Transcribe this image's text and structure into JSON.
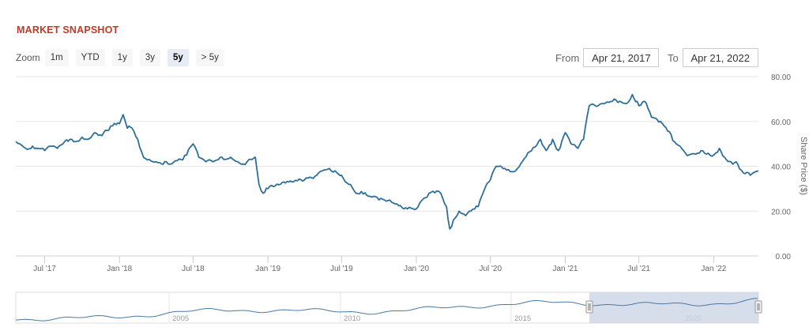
{
  "header": {
    "title": "MARKET SNAPSHOT"
  },
  "zoom": {
    "label": "Zoom",
    "buttons": [
      {
        "label": "1m",
        "active": false
      },
      {
        "label": "YTD",
        "active": false
      },
      {
        "label": "1y",
        "active": false
      },
      {
        "label": "3y",
        "active": false
      },
      {
        "label": "5y",
        "active": true
      },
      {
        "label": "> 5y",
        "active": false
      }
    ]
  },
  "range": {
    "from_label": "From",
    "from_value": "Apr 21, 2017",
    "to_label": "To",
    "to_value": "Apr 21, 2022"
  },
  "colors": {
    "line": "#2e6f99",
    "grid": "#e6e6e6",
    "navigator_fill": "#cdd6e6",
    "navigator_line": "#4a78a5"
  },
  "chart_data": {
    "type": "line",
    "title": "MARKET SNAPSHOT",
    "xlabel": "",
    "ylabel": "Share Price ($)",
    "x_range": [
      "2017-04-21",
      "2022-04-21"
    ],
    "ylim": [
      0,
      80
    ],
    "y_ticks": [
      0,
      20,
      40,
      60,
      80
    ],
    "y_tick_labels": [
      "0.00",
      "20.00",
      "40.00",
      "60.00",
      "80.00"
    ],
    "x_ticks": [
      "2017-07-01",
      "2018-01-01",
      "2018-07-01",
      "2019-01-01",
      "2019-07-01",
      "2020-01-01",
      "2020-07-01",
      "2021-01-01",
      "2021-07-01",
      "2022-01-01"
    ],
    "x_tick_labels": [
      "Jul '17",
      "Jan '18",
      "Jul '18",
      "Jan '19",
      "Jul '19",
      "Jan '20",
      "Jul '20",
      "Jan '21",
      "Jul '21",
      "Jan '22"
    ],
    "grid": true,
    "legend": "none",
    "series": [
      {
        "x": [
          "2017-04-21",
          "2017-05-01",
          "2017-05-15",
          "2017-06-01",
          "2017-06-15",
          "2017-07-01",
          "2017-07-15",
          "2017-08-01",
          "2017-08-15",
          "2017-09-01",
          "2017-09-15",
          "2017-10-01",
          "2017-10-15",
          "2017-11-01",
          "2017-11-15",
          "2017-12-01",
          "2017-12-15",
          "2018-01-01",
          "2018-01-10",
          "2018-01-20",
          "2018-02-01",
          "2018-02-15",
          "2018-03-01",
          "2018-03-15",
          "2018-04-01",
          "2018-05-01",
          "2018-06-01",
          "2018-06-15",
          "2018-07-01",
          "2018-07-15",
          "2018-08-01",
          "2018-09-01",
          "2018-10-01",
          "2018-11-01",
          "2018-11-15",
          "2018-12-01",
          "2018-12-10",
          "2018-12-20",
          "2019-01-01",
          "2019-02-01",
          "2019-03-01",
          "2019-04-01",
          "2019-05-01",
          "2019-05-15",
          "2019-06-01",
          "2019-06-15",
          "2019-07-01",
          "2019-08-01",
          "2019-09-01",
          "2019-10-01",
          "2019-11-01",
          "2019-12-01",
          "2020-01-01",
          "2020-02-01",
          "2020-02-20",
          "2020-03-01",
          "2020-03-15",
          "2020-03-23",
          "2020-04-01",
          "2020-04-15",
          "2020-05-01",
          "2020-06-01",
          "2020-06-15",
          "2020-07-01",
          "2020-07-15",
          "2020-08-01",
          "2020-09-01",
          "2020-10-01",
          "2020-11-01",
          "2020-11-15",
          "2020-12-01",
          "2020-12-15",
          "2021-01-01",
          "2021-01-15",
          "2021-02-01",
          "2021-02-15",
          "2021-03-01",
          "2021-04-01",
          "2021-05-01",
          "2021-05-15",
          "2021-06-01",
          "2021-06-15",
          "2021-07-01",
          "2021-07-15",
          "2021-08-01",
          "2021-09-01",
          "2021-10-01",
          "2021-11-01",
          "2021-12-01",
          "2022-01-01",
          "2022-01-15",
          "2022-02-01",
          "2022-03-01",
          "2022-03-15",
          "2022-04-01",
          "2022-04-21"
        ],
        "values": [
          51,
          50,
          48,
          49,
          48,
          47,
          49,
          48,
          50,
          52,
          51,
          53,
          52,
          55,
          54,
          56,
          58,
          59,
          63,
          57,
          57,
          52,
          44,
          43,
          42,
          41,
          43,
          45,
          50,
          44,
          42,
          43,
          44,
          41,
          43,
          44,
          32,
          28,
          30,
          32,
          33,
          34,
          36,
          38,
          39,
          38,
          36,
          29,
          27,
          25,
          24,
          21,
          21,
          28,
          29,
          28,
          22,
          12,
          16,
          20,
          18,
          22,
          29,
          34,
          40,
          39,
          38,
          46,
          52,
          47,
          52,
          47,
          55,
          50,
          48,
          52,
          67,
          68,
          70,
          69,
          68,
          72,
          67,
          69,
          62,
          58,
          50,
          45,
          47,
          45,
          48,
          43,
          41,
          37,
          36,
          38
        ]
      }
    ],
    "navigator": {
      "x_tick_labels": [
        "2005",
        "2010",
        "2015",
        "2020"
      ]
    }
  }
}
